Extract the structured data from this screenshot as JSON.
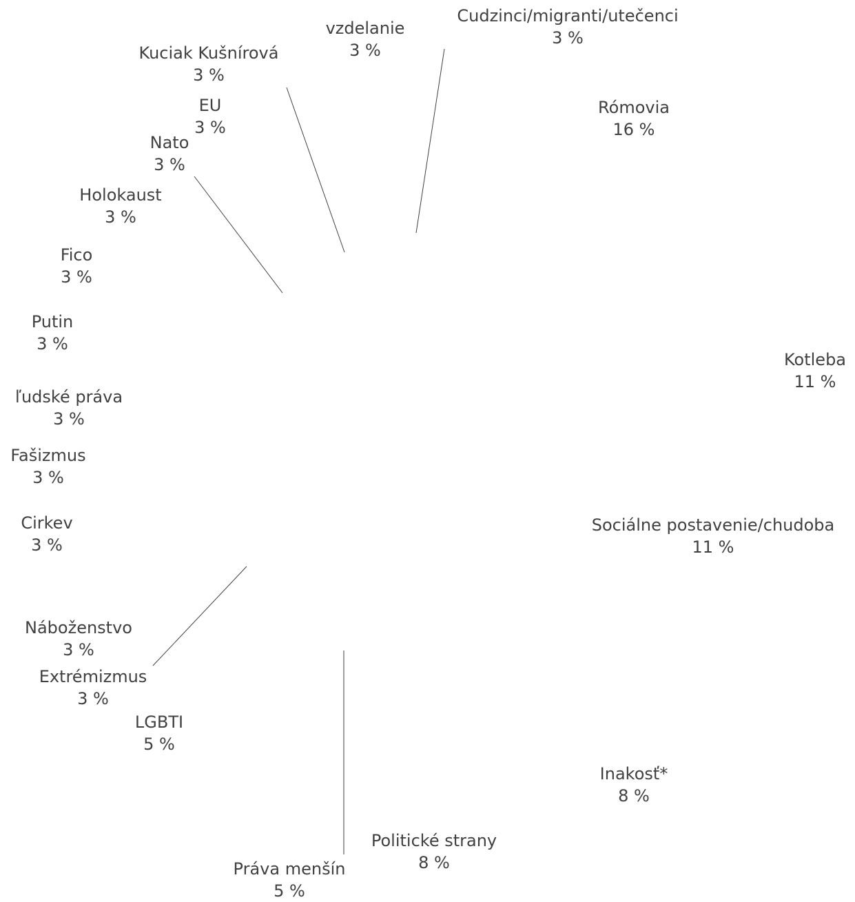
{
  "chart_data": {
    "type": "pie",
    "slices": [
      {
        "label": "Rómovia",
        "value": 16,
        "value_label": "16 %"
      },
      {
        "label": "Kotleba",
        "value": 11,
        "value_label": "11 %"
      },
      {
        "label": "Sociálne postavenie/chudoba",
        "value": 11,
        "value_label": "11 %"
      },
      {
        "label": "Inakosť*",
        "value": 8,
        "value_label": "8 %"
      },
      {
        "label": "Politické strany",
        "value": 8,
        "value_label": "8 %"
      },
      {
        "label": "Práva menšín",
        "value": 5,
        "value_label": "5 %"
      },
      {
        "label": "LGBTI",
        "value": 5,
        "value_label": "5 %"
      },
      {
        "label": "Extrémizmus",
        "value": 3,
        "value_label": "3 %"
      },
      {
        "label": "Náboženstvo",
        "value": 3,
        "value_label": "3 %"
      },
      {
        "label": "Cirkev",
        "value": 3,
        "value_label": "3 %"
      },
      {
        "label": "Fašizmus",
        "value": 3,
        "value_label": "3 %"
      },
      {
        "label": "ľudské práva",
        "value": 3,
        "value_label": "3 %"
      },
      {
        "label": "Putin",
        "value": 3,
        "value_label": "3 %"
      },
      {
        "label": "Fico",
        "value": 3,
        "value_label": "3 %"
      },
      {
        "label": "Holokaust",
        "value": 3,
        "value_label": "3 %"
      },
      {
        "label": "Nato",
        "value": 3,
        "value_label": "3 %"
      },
      {
        "label": "EU",
        "value": 3,
        "value_label": "3 %"
      },
      {
        "label": "Kuciak Kušnírová",
        "value": 3,
        "value_label": "3 %"
      },
      {
        "label": "vzdelanie",
        "value": 3,
        "value_label": "3 %"
      },
      {
        "label": "Cudzinci/migranti/utečenci",
        "value": 3,
        "value_label": "3 %"
      }
    ],
    "legend": "none",
    "data_labels": "outside with leader lines"
  }
}
